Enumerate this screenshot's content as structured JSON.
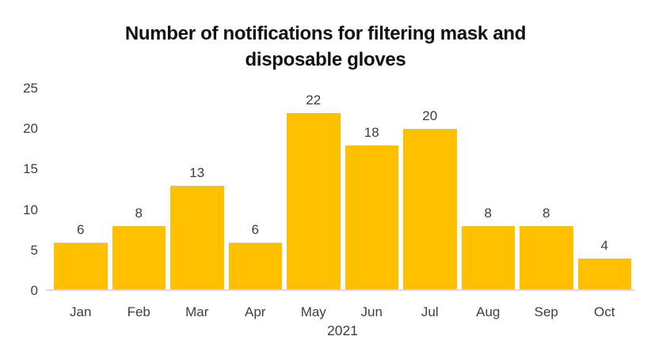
{
  "chart_data": {
    "type": "bar",
    "title": "Number of notifications for filtering mask and disposable gloves",
    "title_lines": [
      "Number of notifications for filtering mask and",
      "disposable gloves"
    ],
    "categories": [
      "Jan",
      "Feb",
      "Mar",
      "Apr",
      "May",
      "Jun",
      "Jul",
      "Aug",
      "Sep",
      "Oct"
    ],
    "values": [
      6,
      8,
      13,
      6,
      22,
      18,
      20,
      8,
      8,
      4
    ],
    "data_labels_shown": true,
    "xlabel": "2021",
    "ylabel": "",
    "ylim": [
      0,
      25
    ],
    "yticks": [
      0,
      5,
      10,
      15,
      20,
      25
    ],
    "grid": false,
    "legend": false,
    "colors": {
      "bar": "#FFC000",
      "title_text": "#111111",
      "axis_text": "#404040",
      "axis_line": "#ded8d8",
      "background": "#ffffff"
    }
  }
}
